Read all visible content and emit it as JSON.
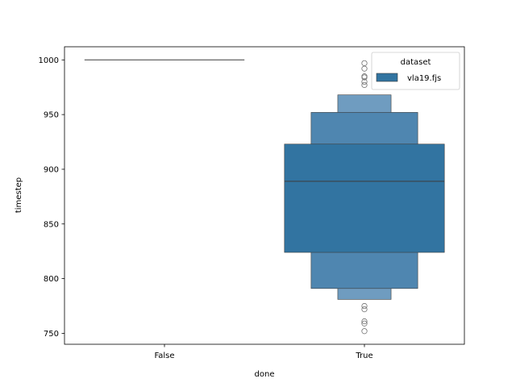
{
  "chart_data": {
    "type": "boxen",
    "title": "",
    "xlabel": "done",
    "ylabel": "timestep",
    "categories": [
      "False",
      "True"
    ],
    "ylim": [
      740,
      1012
    ],
    "yticks": [
      750,
      800,
      850,
      900,
      950,
      1000
    ],
    "grid": false,
    "legend": {
      "title": "dataset",
      "placement": "top-right",
      "entries": [
        {
          "name": "vla19.fjs",
          "color": "#3274a1"
        }
      ]
    },
    "series": [
      {
        "name": "vla19.fjs",
        "groups": [
          {
            "category": "False",
            "median": 1000,
            "boxes": [],
            "outliers": []
          },
          {
            "category": "True",
            "median": 889,
            "boxes": [
              {
                "low": 824,
                "high": 923,
                "color": "#3274a1"
              },
              {
                "low": 791,
                "high": 952,
                "color": "#4f86b0"
              },
              {
                "low": 781,
                "high": 968,
                "color": "#6f9cc0"
              }
            ],
            "outliers": [
              752,
              759,
              761,
              772,
              775,
              977,
              980,
              984,
              985,
              992,
              997
            ]
          }
        ]
      }
    ]
  }
}
